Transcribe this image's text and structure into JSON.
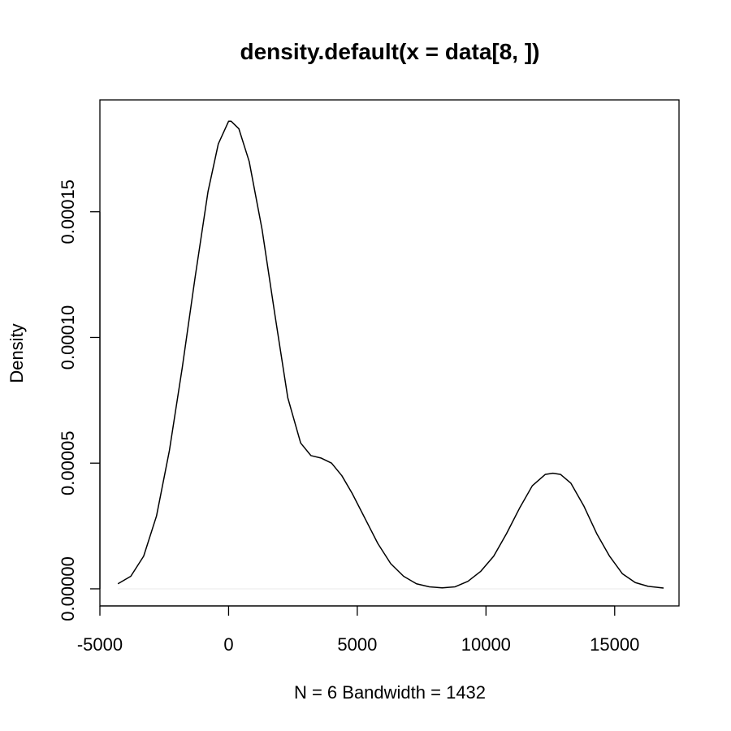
{
  "chart_data": {
    "type": "line",
    "title": "density.default(x = data[8, ])",
    "xlabel": "N = 6   Bandwidth = 1432",
    "ylabel": "Density",
    "xlim": [
      -5000,
      17500
    ],
    "ylim": [
      -6.8e-06,
      0.0001945
    ],
    "x_ticks": [
      -5000,
      0,
      5000,
      10000,
      15000
    ],
    "x_tick_labels": [
      "-5000",
      "0",
      "5000",
      "10000",
      "15000"
    ],
    "y_ticks": [
      0,
      5e-05,
      0.0001,
      0.00015
    ],
    "y_tick_labels": [
      "0.00000",
      "0.00005",
      "0.00010",
      "0.00015"
    ],
    "grid": false,
    "series": [
      {
        "values_x": [
          -4300,
          -3800,
          -3300,
          -2800,
          -2300,
          -1800,
          -1300,
          -800,
          -400,
          0,
          100,
          400,
          800,
          1300,
          1800,
          2300,
          2800,
          3200,
          3600,
          4000,
          4400,
          4800,
          5300,
          5800,
          6300,
          6800,
          7300,
          7800,
          8300,
          8800,
          9300,
          9800,
          10300,
          10800,
          11300,
          11800,
          12300,
          12600,
          12900,
          13300,
          13800,
          14300,
          14800,
          15300,
          15800,
          16300,
          16900
        ],
        "values_y": [
          2e-06,
          5e-06,
          1.3e-05,
          2.9e-05,
          5.5e-05,
          8.8e-05,
          0.000124,
          0.000158,
          0.000177,
          0.000186,
          0.000186,
          0.000183,
          0.00017,
          0.000143,
          0.000109,
          7.6e-05,
          5.8e-05,
          5.3e-05,
          5.2e-05,
          5e-05,
          4.5e-05,
          3.8e-05,
          2.8e-05,
          1.8e-05,
          1e-05,
          5e-06,
          2e-06,
          8e-07,
          4e-07,
          8e-07,
          3e-06,
          7e-06,
          1.3e-05,
          2.2e-05,
          3.2e-05,
          4.1e-05,
          4.55e-05,
          4.6e-05,
          4.55e-05,
          4.2e-05,
          3.3e-05,
          2.2e-05,
          1.3e-05,
          6e-06,
          2.5e-06,
          1e-06,
          3e-07
        ]
      }
    ]
  }
}
